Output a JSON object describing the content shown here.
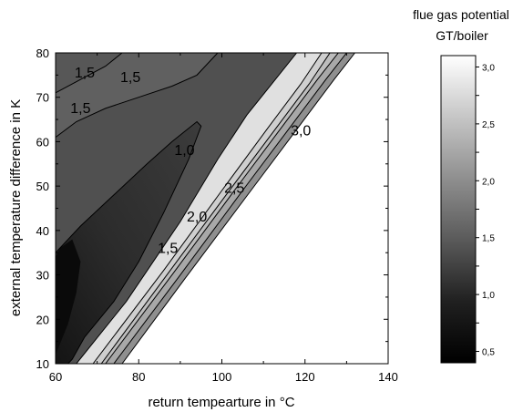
{
  "chart_data": {
    "type": "contour",
    "title": "",
    "xlabel": "return tempearture in °C",
    "ylabel": "external temperature difference in K",
    "xlim": [
      60,
      140
    ],
    "ylim": [
      10,
      80
    ],
    "xticks": [
      "60",
      "80",
      "100",
      "120",
      "140"
    ],
    "yticks": [
      "10",
      "20",
      "30",
      "40",
      "50",
      "60",
      "70",
      "80"
    ],
    "grid": false,
    "colorbar": {
      "title_line1": "flue gas potential",
      "title_line2": "GT/boiler",
      "range": [
        0.4,
        3.1
      ],
      "ticks": [
        "0,5",
        "1,0",
        "1,5",
        "2,0",
        "2,5",
        "3,0"
      ],
      "colormap": "grayscale, black at low values, white at high values"
    },
    "contour_lines": [
      {
        "label": "1,5",
        "points": [
          [
            60,
            71
          ],
          [
            66,
            74
          ],
          [
            72,
            77
          ],
          [
            76,
            80
          ]
        ]
      },
      {
        "label": "1,5",
        "points": [
          [
            60,
            61
          ],
          [
            65,
            64.5
          ],
          [
            72,
            67.5
          ],
          [
            80,
            70
          ],
          [
            88,
            72.5
          ],
          [
            94,
            75
          ],
          [
            99,
            80
          ]
        ]
      },
      {
        "label": "1,0",
        "points": [
          [
            60,
            35
          ],
          [
            66,
            41
          ],
          [
            74,
            48
          ],
          [
            82,
            55
          ],
          [
            88,
            60
          ],
          [
            94,
            64.5
          ],
          [
            95,
            63.5
          ],
          [
            92,
            56
          ],
          [
            86,
            44
          ],
          [
            80,
            33
          ],
          [
            74,
            24
          ],
          [
            67,
            16
          ],
          [
            64,
            11
          ],
          [
            63,
            10
          ]
        ]
      },
      {
        "label": "",
        "points": [
          [
            65,
            10
          ],
          [
            77,
            24
          ],
          [
            90,
            42
          ],
          [
            99,
            56
          ],
          [
            106,
            66
          ],
          [
            112,
            73
          ],
          [
            118,
            80
          ]
        ]
      },
      {
        "label": "",
        "points": [
          [
            69,
            10
          ],
          [
            86,
            31
          ],
          [
            100,
            49
          ],
          [
            111,
            63
          ],
          [
            119,
            73
          ],
          [
            124,
            80
          ]
        ]
      },
      {
        "label": "",
        "points": [
          [
            71,
            10
          ],
          [
            86,
            29
          ],
          [
            101,
            48
          ],
          [
            113,
            63
          ],
          [
            121,
            73
          ],
          [
            126,
            80
          ]
        ]
      },
      {
        "label": "",
        "points": [
          [
            72,
            10
          ],
          [
            88,
            30
          ],
          [
            103,
            49
          ],
          [
            115,
            64
          ],
          [
            123,
            74
          ],
          [
            128,
            80
          ]
        ]
      },
      {
        "label": "",
        "points": [
          [
            74,
            10
          ],
          [
            90,
            30
          ],
          [
            105,
            49
          ],
          [
            117,
            64
          ],
          [
            125,
            74
          ],
          [
            130,
            80
          ]
        ]
      },
      {
        "label": "",
        "points": [
          [
            76,
            10
          ],
          [
            91,
            29
          ],
          [
            107,
            49
          ],
          [
            119,
            64
          ],
          [
            127,
            74
          ],
          [
            132,
            80
          ]
        ]
      }
    ],
    "contour_labels": [
      {
        "text": "1,5",
        "x": 67,
        "y": 75.5
      },
      {
        "text": "1,5",
        "x": 78,
        "y": 74.5
      },
      {
        "text": "1,5",
        "x": 66,
        "y": 67.5
      },
      {
        "text": "1,0",
        "x": 91,
        "y": 58
      },
      {
        "text": "1,5",
        "x": 87,
        "y": 36
      },
      {
        "text": "2,0",
        "x": 94,
        "y": 43
      },
      {
        "text": "2,5",
        "x": 103,
        "y": 49.5
      },
      {
        "text": "3,0",
        "x": 119,
        "y": 62.5
      }
    ]
  }
}
